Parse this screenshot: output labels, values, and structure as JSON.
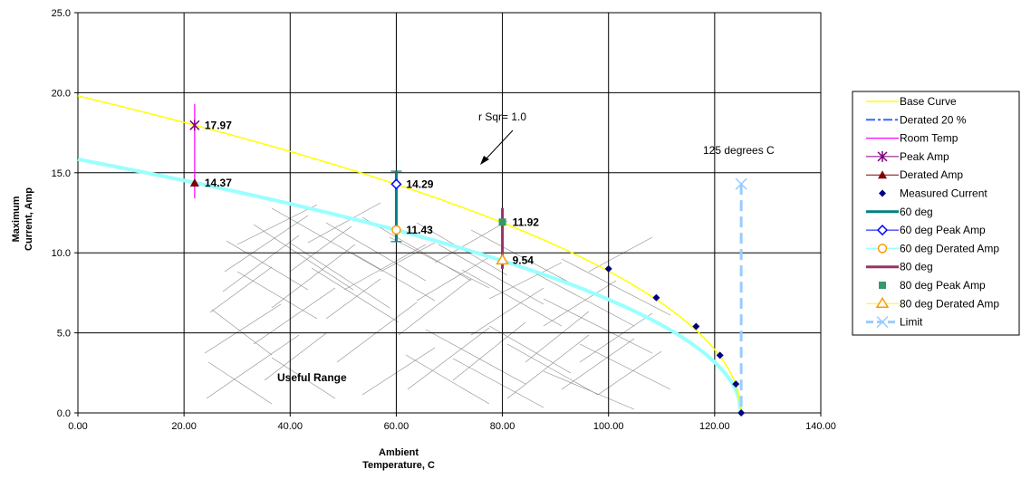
{
  "chart_data": {
    "type": "scatter",
    "title": "",
    "xlabel": [
      "Ambient",
      "Temperature, C"
    ],
    "ylabel": [
      "Maximum",
      "Current, Amp"
    ],
    "xlim": [
      0,
      140
    ],
    "ylim": [
      0,
      25
    ],
    "x_ticks": [
      "0.00",
      "20.00",
      "40.00",
      "60.00",
      "80.00",
      "100.00",
      "120.00",
      "140.00"
    ],
    "y_ticks": [
      "0.0",
      "5.0",
      "10.0",
      "15.0",
      "20.0",
      "25.0"
    ],
    "grid": true,
    "legend_position": "right",
    "base_curve": {
      "name": "Base Curve",
      "i0": 19.8,
      "t_max": 125,
      "exponent": 0.5,
      "color": "#FFFF00"
    },
    "derated_curve": {
      "name": "Derated 20 %",
      "i0": 15.84,
      "t_max": 125,
      "exponent": 0.5,
      "color": "#99FFFF"
    },
    "series": [
      {
        "name": "Room Temp",
        "points": [
          [
            22,
            19.3
          ],
          [
            22,
            13.4
          ]
        ],
        "color": "#FF00FF"
      },
      {
        "name": "Peak Amp",
        "points": [
          [
            22,
            17.97
          ]
        ],
        "color": "#800080"
      },
      {
        "name": "Derated Amp",
        "points": [
          [
            22,
            14.37
          ]
        ],
        "color": "#800000"
      },
      {
        "name": "Measured Current",
        "points": [
          [
            100,
            9.0
          ],
          [
            109,
            7.2
          ],
          [
            116.5,
            5.4
          ],
          [
            121,
            3.6
          ],
          [
            124,
            1.8
          ],
          [
            125,
            0.0
          ]
        ],
        "color": "#000080"
      },
      {
        "name": "60 deg",
        "points": [
          [
            60,
            15.1
          ],
          [
            60,
            10.7
          ]
        ],
        "color": "#008080"
      },
      {
        "name": "60 deg Peak Amp",
        "points": [
          [
            60,
            14.29
          ]
        ],
        "color": "#0000FF"
      },
      {
        "name": "60 deg Derated Amp",
        "points": [
          [
            60,
            11.43
          ]
        ],
        "color": "#FF9900"
      },
      {
        "name": "80 deg",
        "points": [
          [
            80,
            12.8
          ],
          [
            80,
            9.0
          ]
        ],
        "color": "#993366"
      },
      {
        "name": "80 deg Peak Amp",
        "points": [
          [
            80,
            11.92
          ]
        ],
        "color": "#339966"
      },
      {
        "name": "80 deg Derated Amp",
        "points": [
          [
            80,
            9.54
          ]
        ],
        "color": "#FF9900"
      },
      {
        "name": "Limit",
        "points": [
          [
            125,
            14.3
          ],
          [
            125,
            0
          ]
        ],
        "color": "#99CCFF"
      }
    ],
    "data_labels": [
      {
        "x": 22,
        "y": 17.97,
        "text": "17.97"
      },
      {
        "x": 22,
        "y": 14.37,
        "text": "14.37"
      },
      {
        "x": 60,
        "y": 14.29,
        "text": "14.29"
      },
      {
        "x": 60,
        "y": 11.43,
        "text": "11.43"
      },
      {
        "x": 80,
        "y": 11.92,
        "text": "11.92"
      },
      {
        "x": 80,
        "y": 9.54,
        "text": "9.54"
      }
    ],
    "annotations": {
      "r_sqr": "r Sqr= 1.0",
      "limit_label": "125 degrees C",
      "region_label": "Useful Range"
    },
    "legend": [
      "Base Curve",
      "Derated 20 %",
      "Room Temp",
      "Peak Amp",
      "Derated Amp",
      "Measured Current",
      "60 deg",
      "60 deg Peak Amp",
      "60 deg Derated Amp",
      "80 deg",
      "80 deg Peak Amp",
      "80 deg Derated Amp",
      "Limit"
    ]
  }
}
